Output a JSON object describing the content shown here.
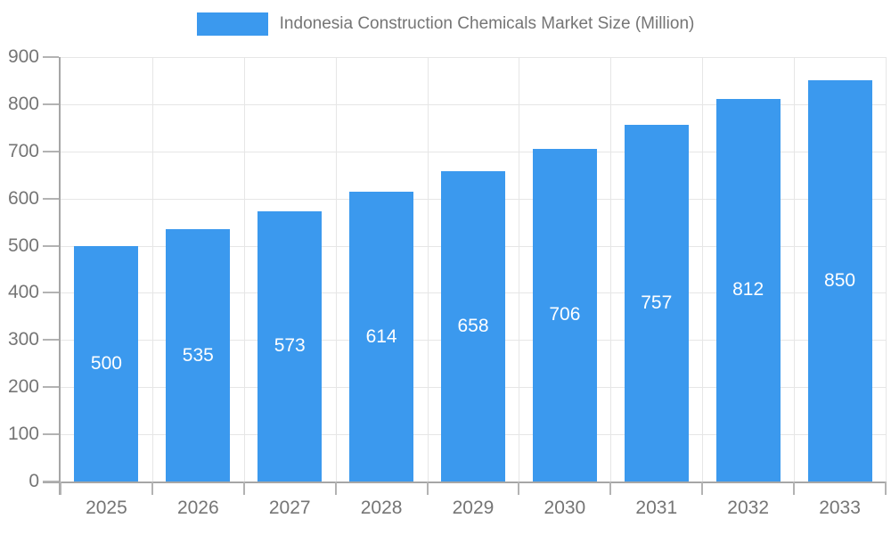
{
  "legend": {
    "label": "Indonesia Construction Chemicals Market Size (Million)",
    "swatch_color": "#3b99ee"
  },
  "chart_data": {
    "type": "bar",
    "title": "Indonesia Construction Chemicals Market Size (Million)",
    "categories": [
      "2025",
      "2026",
      "2027",
      "2028",
      "2029",
      "2030",
      "2031",
      "2032",
      "2033"
    ],
    "values": [
      500,
      535,
      573,
      614,
      658,
      706,
      757,
      812,
      850
    ],
    "xlabel": "",
    "ylabel": "",
    "ylim": [
      0,
      900
    ],
    "yticks": [
      0,
      100,
      200,
      300,
      400,
      500,
      600,
      700,
      800,
      900
    ],
    "grid": true,
    "legend_position": "top",
    "bar_color": "#3b99ee",
    "bar_label_color": "#ffffff",
    "axis_text_color": "#757575",
    "grid_color": "#e6e6e6",
    "axis_line_color": "#a6a6a6",
    "tick_color": "#b3b3b3"
  }
}
